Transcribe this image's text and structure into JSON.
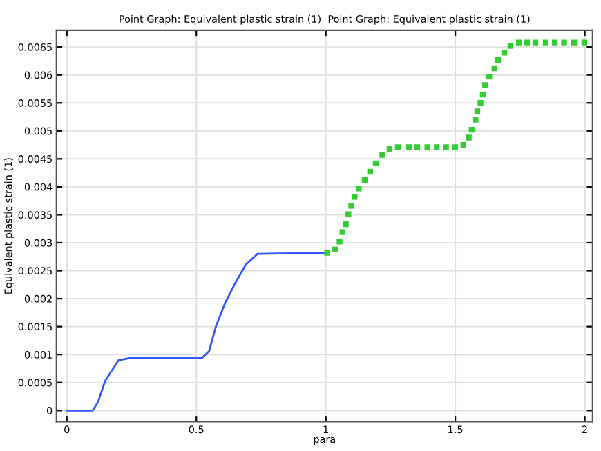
{
  "chart_data": {
    "type": "line",
    "title": "Point Graph: Equivalent plastic strain (1)  Point Graph: Equivalent plastic strain (1)",
    "xlabel": "para",
    "ylabel": "Equivalent plastic strain (1)",
    "series": [
      {
        "color": "#3355ff",
        "marker": "none",
        "x": [
          0,
          0.1,
          0.12,
          0.148,
          0.2,
          0.245,
          0.522,
          0.549,
          0.576,
          0.611,
          0.647,
          0.691,
          0.736,
          1.0
        ],
        "values": [
          0,
          0,
          0.00015,
          0.00053,
          0.0009,
          0.00094,
          0.00094,
          0.00106,
          0.00151,
          0.00192,
          0.00225,
          0.00261,
          0.0028,
          0.00282
        ]
      },
      {
        "type": "scatter",
        "color": "#33cc33",
        "marker": "square",
        "x": [
          1.005,
          1.035,
          1.053,
          1.064,
          1.077,
          1.087,
          1.098,
          1.111,
          1.127,
          1.15,
          1.171,
          1.193,
          1.218,
          1.246,
          1.278,
          1.321,
          1.353,
          1.392,
          1.428,
          1.464,
          1.499,
          1.531,
          1.552,
          1.563,
          1.578,
          1.585,
          1.597,
          1.606,
          1.615,
          1.631,
          1.651,
          1.665,
          1.689,
          1.713,
          1.745,
          1.777,
          1.809,
          1.849,
          1.884,
          1.92,
          1.959,
          1.998
        ],
        "values": [
          0.00282,
          0.00288,
          0.00302,
          0.00319,
          0.00333,
          0.00351,
          0.00366,
          0.00382,
          0.00397,
          0.00412,
          0.00427,
          0.00442,
          0.00457,
          0.00468,
          0.00471,
          0.00471,
          0.00471,
          0.00471,
          0.00471,
          0.00471,
          0.00471,
          0.00475,
          0.00488,
          0.00502,
          0.0052,
          0.00535,
          0.0055,
          0.00565,
          0.00582,
          0.00597,
          0.00612,
          0.00627,
          0.0064,
          0.00652,
          0.00658,
          0.00658,
          0.00658,
          0.00658,
          0.00658,
          0.00658,
          0.00658,
          0.00658
        ]
      }
    ],
    "xlim": [
      -0.04,
      2.03
    ],
    "ylim": [
      -0.0002,
      0.0068
    ],
    "xticks": [
      0,
      0.5,
      1,
      1.5,
      2
    ],
    "yticks": [
      0,
      0.0005,
      0.001,
      0.0015,
      0.002,
      0.0025,
      0.003,
      0.0035,
      0.004,
      0.0045,
      0.005,
      0.0055,
      0.006,
      0.0065
    ],
    "grid": true
  }
}
